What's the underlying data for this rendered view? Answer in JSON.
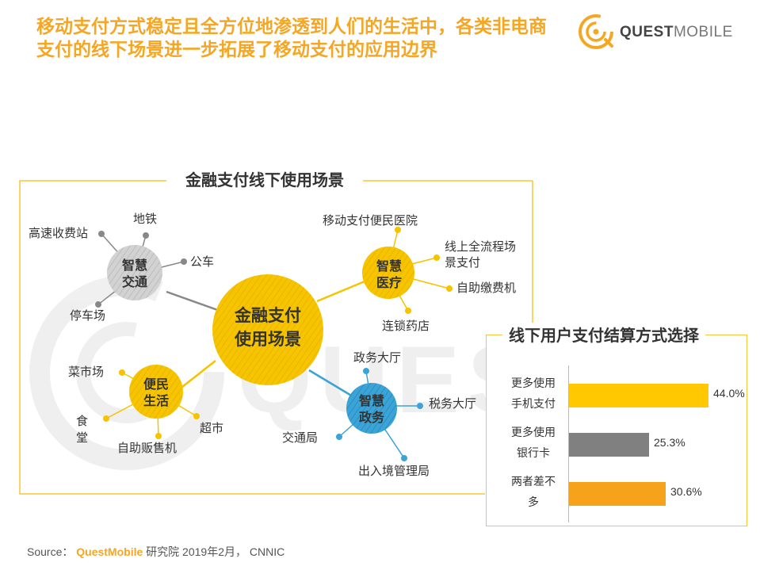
{
  "title": {
    "line1": "移动支付方式稳定且全方位地渗透到人们的生活中，各类非电商",
    "line2": "支付的线下场景进一步拓展了移动支付的应用边界"
  },
  "logo": {
    "bold": "QUEST",
    "thin": "MOBILE"
  },
  "diagram": {
    "title": "金融支付线下使用场景",
    "center": {
      "line1": "金融支付",
      "line2": "使用场景"
    },
    "hubs": {
      "transport": {
        "line1": "智慧",
        "line2": "交通",
        "leaves": [
          "高速收费站",
          "地铁",
          "公车",
          "停车场"
        ]
      },
      "medical": {
        "line1": "智慧",
        "line2": "医疗",
        "leaves": [
          "移动支付便民医院",
          "线上全流程场",
          "景支付",
          "自助缴费机",
          "连锁药店"
        ]
      },
      "life": {
        "line1": "便民",
        "line2": "生活",
        "leaves": [
          "菜市场",
          "食",
          "堂",
          "超市",
          "自助贩售机"
        ]
      },
      "gov": {
        "line1": "智慧",
        "line2": "政务",
        "leaves": [
          "政务大厅",
          "税务大厅",
          "交通局",
          "出入境管理局"
        ]
      }
    }
  },
  "panel": {
    "title": "线下用户支付结算方式选择"
  },
  "chart_data": {
    "type": "bar",
    "orientation": "horizontal",
    "title": "线下用户支付结算方式选择",
    "categories": [
      {
        "line1": "更多使用",
        "line2": "手机支付"
      },
      {
        "line1": "更多使用",
        "line2": "银行卡"
      },
      {
        "line1": "两者差不",
        "line2": "多"
      }
    ],
    "values": [
      44.0,
      25.3,
      30.6
    ],
    "value_labels": [
      "44.0%",
      "25.3%",
      "30.6%"
    ],
    "colors": [
      "#ffc800",
      "#808080",
      "#f7a21b"
    ],
    "xlim": [
      0,
      44.0
    ],
    "grid": false
  },
  "source": {
    "prefix": "Source：",
    "brand": "QuestMobile",
    "rest": "研究院 2019年2月， CNNIC"
  },
  "colors": {
    "accent": "#f5a623",
    "yellow": "#f5c63a",
    "blue": "#3ba3d6",
    "gray": "#cccccc"
  }
}
